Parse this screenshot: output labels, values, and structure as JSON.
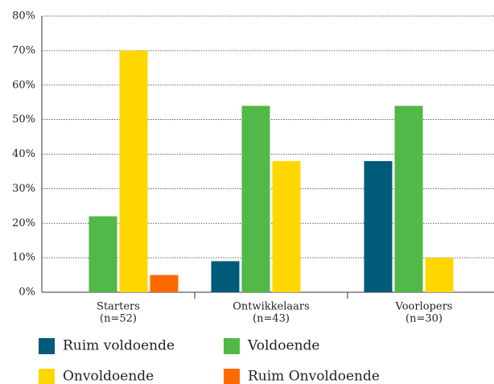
{
  "chart_data": {
    "type": "bar",
    "categories": [
      "Starters",
      "Ontwikkelaars",
      "Voorlopers"
    ],
    "category_notes": [
      "(n=52)",
      "(n=43)",
      "(n=30)"
    ],
    "series": [
      {
        "name": "Ruim voldoende",
        "color": "#005a7a",
        "values": [
          0,
          9,
          38
        ]
      },
      {
        "name": "Voldoende",
        "color": "#52b847",
        "values": [
          22,
          54,
          54
        ]
      },
      {
        "name": "Onvoldoende",
        "color": "#ffd700",
        "values": [
          70,
          38,
          10
        ]
      },
      {
        "name": "Ruim Onvoldoende",
        "color": "#ff6a00",
        "values": [
          5,
          0,
          0
        ]
      }
    ],
    "ylim": [
      0,
      80
    ],
    "yticks": [
      {
        "value": 0,
        "label": "0%"
      },
      {
        "value": 10,
        "label": "10%"
      },
      {
        "value": 20,
        "label": "20%"
      },
      {
        "value": 30,
        "label": "30%"
      },
      {
        "value": 40,
        "label": "40%"
      },
      {
        "value": 50,
        "label": "50%"
      },
      {
        "value": 60,
        "label": "60%"
      },
      {
        "value": 70,
        "label": "70%"
      },
      {
        "value": 80,
        "label": "80%"
      }
    ],
    "grid": true
  }
}
